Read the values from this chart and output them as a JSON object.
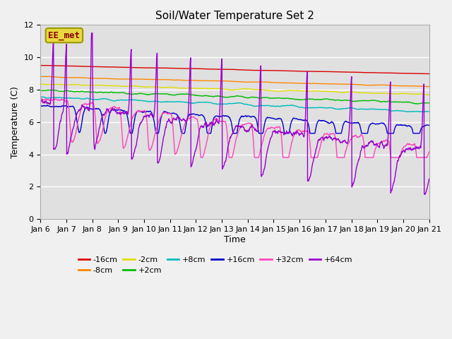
{
  "title": "Soil/Water Temperature Set 2",
  "xlabel": "Time",
  "ylabel": "Temperature (C)",
  "ylim": [
    0,
    12
  ],
  "xlim": [
    0,
    15
  ],
  "x_tick_labels": [
    "Jan 6",
    "Jan 7",
    "Jan 8",
    "Jan 9",
    "Jan 10",
    "Jan 11",
    "Jan 12",
    "Jan 13",
    "Jan 14",
    "Jan 15",
    "Jan 16",
    "Jan 17",
    "Jan 18",
    "Jan 19",
    "Jan 20",
    "Jan 21"
  ],
  "fig_bg_color": "#f0f0f0",
  "plot_bg_color": "#e0e0e0",
  "grid_color": "#ffffff",
  "annotation_text": "EE_met",
  "annotation_color": "#8b0000",
  "annotation_bg": "#e8d840",
  "annotation_edge": "#999900",
  "series": [
    {
      "label": "-16cm",
      "color": "#dd0000"
    },
    {
      "label": "-8cm",
      "color": "#ff8800"
    },
    {
      "label": "-2cm",
      "color": "#dddd00"
    },
    {
      "label": "+2cm",
      "color": "#00bb00"
    },
    {
      "label": "+8cm",
      "color": "#00bbbb"
    },
    {
      "label": "+16cm",
      "color": "#0000cc"
    },
    {
      "label": "+32cm",
      "color": "#ff44bb"
    },
    {
      "label": "+64cm",
      "color": "#9900cc"
    }
  ]
}
